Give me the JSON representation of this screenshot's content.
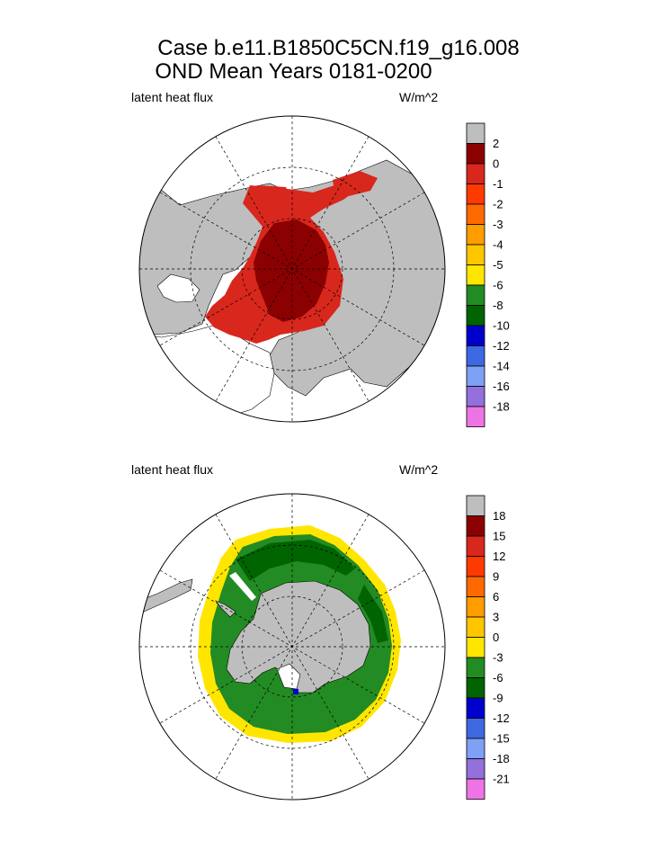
{
  "figure": {
    "title_line1": "Case b.e11.B1850C5CN.f19_g16.008",
    "title_line2": "OND Mean   Years 0181-0200"
  },
  "chart_data": [
    {
      "type": "heatmap",
      "projection": "polar stereographic, North Pole",
      "variable_label": "latent heat flux",
      "units_label": "W/m^2",
      "land_color": "#bebebe",
      "missing_color": "#bebebe",
      "colorbar": {
        "colors": [
          "#bebebe",
          "#8b0000",
          "#d8271d",
          "#ff3a00",
          "#ff6a00",
          "#ff9c00",
          "#ffc600",
          "#ffe600",
          "#238b23",
          "#006400",
          "#0000cd",
          "#3d68e1",
          "#7ea0f5",
          "#9370db",
          "#ee74e5"
        ],
        "tick_labels": [
          "2",
          "0",
          "-1",
          "-2",
          "-3",
          "-4",
          "-5",
          "-6",
          "-8",
          "-10",
          "-12",
          "-14",
          "-16",
          "-18"
        ]
      },
      "field_summary": "Central Arctic Ocean ice cover shows values between 2 and 0 W/m^2 (dark red); surrounding marginal seas (Barents, Kara, Laptev, Bering, Okhotsk, Baffin Bay) show 0 to -1 W/m^2 (red)."
    },
    {
      "type": "heatmap",
      "projection": "polar stereographic, South Pole",
      "variable_label": "latent heat flux",
      "units_label": "W/m^2",
      "land_color": "#bebebe",
      "missing_color": "#bebebe",
      "colorbar": {
        "colors": [
          "#bebebe",
          "#8b0000",
          "#d8271d",
          "#ff3a00",
          "#ff6a00",
          "#ff9c00",
          "#ffc600",
          "#ffe600",
          "#238b23",
          "#006400",
          "#0000cd",
          "#3d68e1",
          "#7ea0f5",
          "#9370db",
          "#ee74e5"
        ],
        "tick_labels": [
          "18",
          "15",
          "12",
          "9",
          "6",
          "3",
          "0",
          "-3",
          "-6",
          "-9",
          "-12",
          "-15",
          "-18",
          "-21"
        ]
      },
      "field_summary": "Antarctic sea-ice ring shows values between -3 and -6 W/m^2 (green), with a darker -6 to -9 W/m^2 band toward the Weddell/Indian sector and a 0 to -3 W/m^2 (yellow) outer ice edge."
    }
  ]
}
